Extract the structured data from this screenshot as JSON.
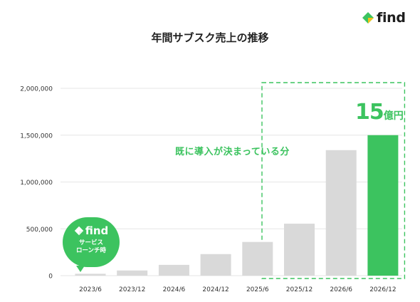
{
  "title": "年間サブスク売上の推移",
  "brand": {
    "name": "find",
    "colors": {
      "green": "#3cc35f",
      "yellow": "#f4c21b",
      "gray_bar": "#d9d9d9"
    }
  },
  "callout": {
    "logo_text": "find",
    "text": "サービス\nローンチ時"
  },
  "committed_label": "既に導入が決まっている分",
  "total_label": {
    "value": "15",
    "unit": "億円"
  },
  "chart_data": {
    "type": "bar",
    "title": "年間サブスク売上の推移",
    "categories": [
      "2023/6",
      "2023/12",
      "2024/6",
      "2024/12",
      "2025/6",
      "2025/12",
      "2026/6",
      "2026/12"
    ],
    "values": [
      20000,
      55000,
      115000,
      230000,
      360000,
      555000,
      1340000,
      1500000
    ],
    "ylim": [
      0,
      2000000
    ],
    "yticks": [
      0,
      500000,
      1000000,
      1500000,
      2000000
    ],
    "ytick_labels": [
      "0",
      "500,000",
      "1,000,000",
      "1,500,000",
      "2,000,000"
    ],
    "highlight_index": 7,
    "dashed_box_categories": [
      "2025/12",
      "2026/6",
      "2026/12"
    ],
    "grid": true,
    "legend": "none"
  }
}
